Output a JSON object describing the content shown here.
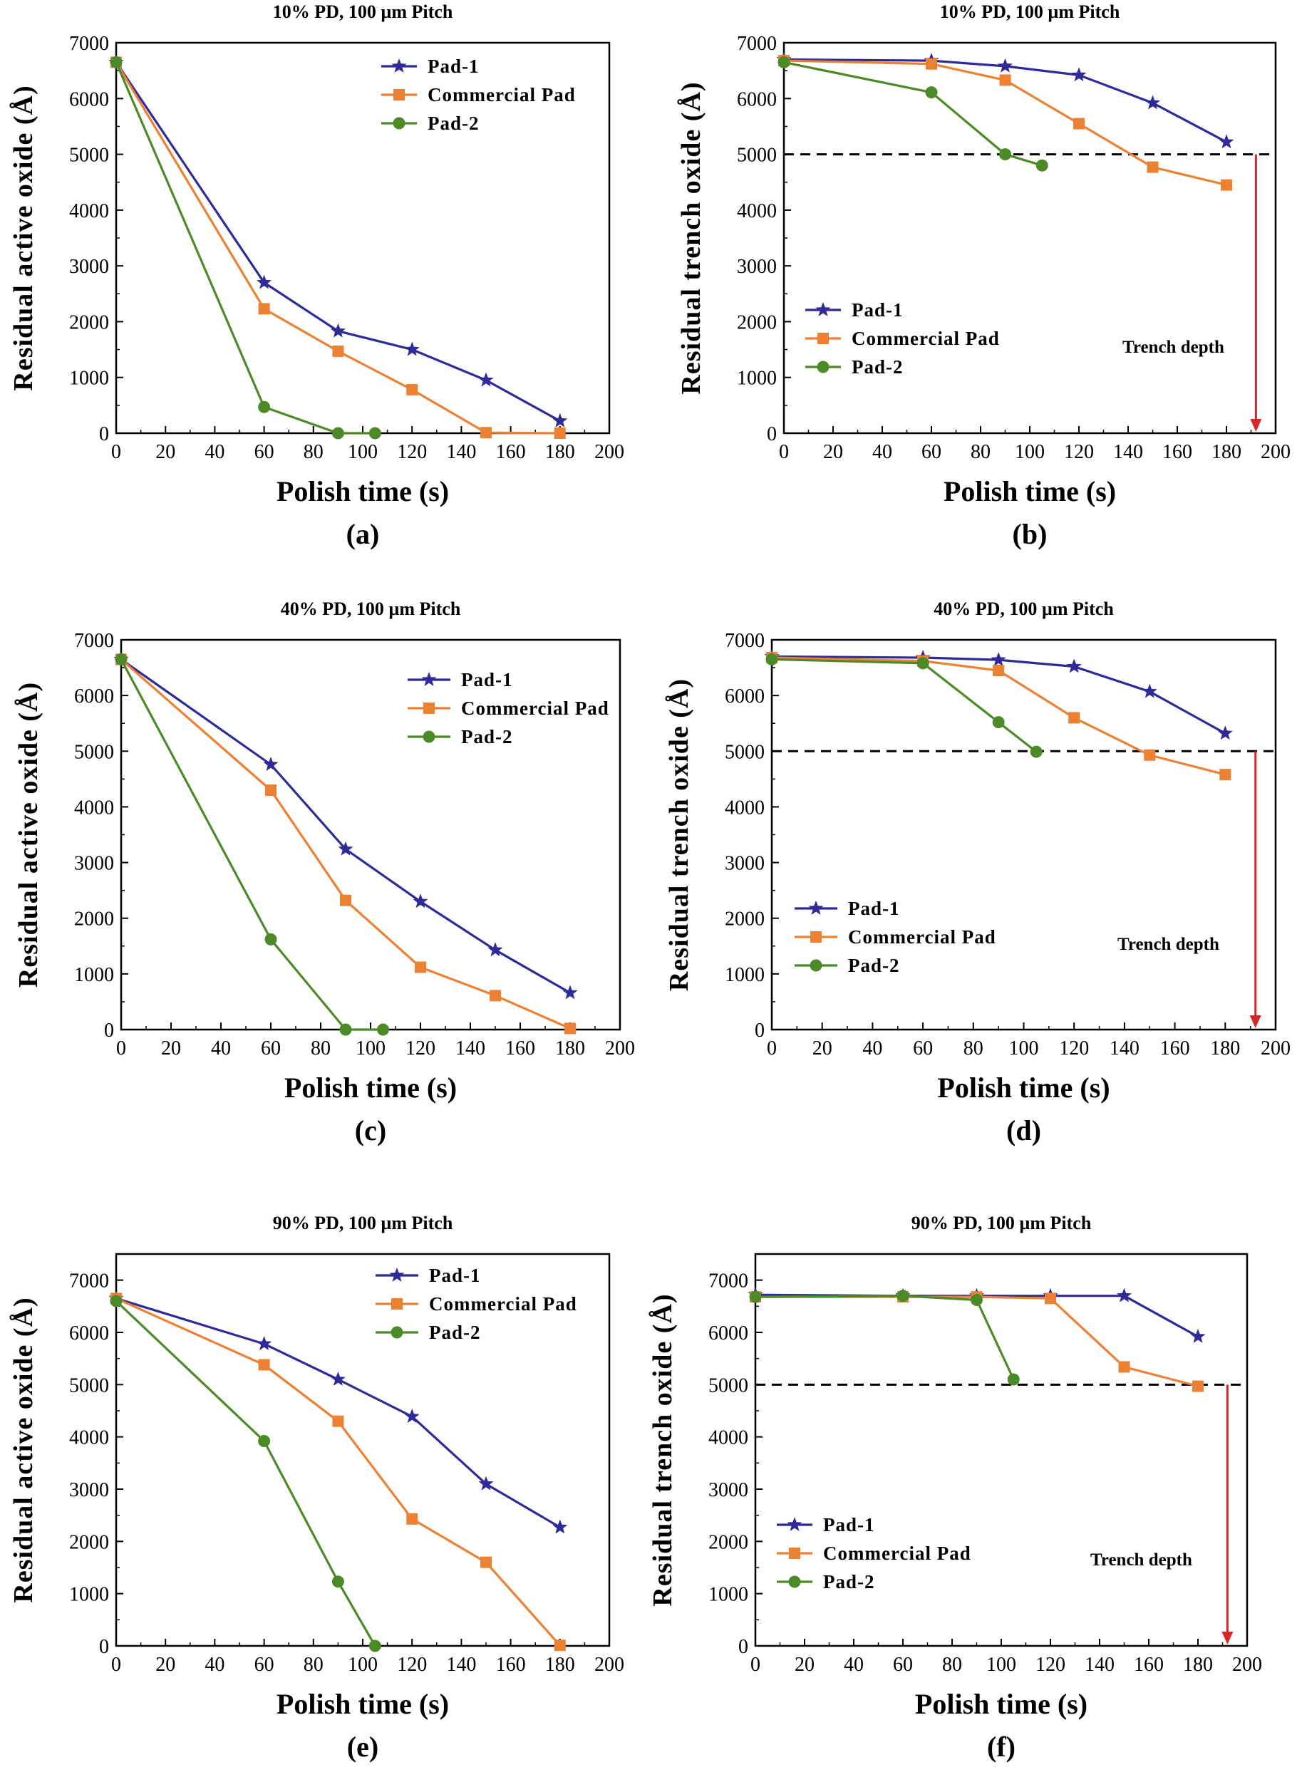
{
  "figure": {
    "series_styles": [
      {
        "name": "Pad-1",
        "color": "#2e2a97",
        "marker": "star"
      },
      {
        "name": "Commercial Pad",
        "color": "#ec8033",
        "marker": "square"
      },
      {
        "name": "Pad-2",
        "color": "#4b8a26",
        "marker": "circle"
      }
    ],
    "threshold_color": "#000000",
    "arrow_color": "#d62728"
  },
  "chart_data": [
    {
      "type": "line",
      "panel_label": "(a)",
      "title": "10% PD, 100 µm Pitch",
      "xlabel": "Polish time (s)",
      "ylabel": "Residual active oxide (Å)",
      "xlim": [
        0,
        200
      ],
      "ylim": [
        0,
        7000
      ],
      "xticks": [
        0,
        20,
        40,
        60,
        80,
        100,
        120,
        140,
        160,
        180,
        200
      ],
      "yticks": [
        0,
        1000,
        2000,
        3000,
        4000,
        5000,
        6000,
        7000
      ],
      "legend_position": "top-right",
      "series": [
        {
          "name": "Pad-1",
          "x": [
            0,
            60,
            90,
            120,
            150,
            180
          ],
          "y": [
            6650,
            2700,
            1830,
            1500,
            950,
            220
          ]
        },
        {
          "name": "Commercial Pad",
          "x": [
            0,
            60,
            90,
            120,
            150,
            180
          ],
          "y": [
            6650,
            2230,
            1470,
            780,
            10,
            0
          ]
        },
        {
          "name": "Pad-2",
          "x": [
            0,
            60,
            90,
            105
          ],
          "y": [
            6650,
            470,
            0,
            0
          ]
        }
      ]
    },
    {
      "type": "line",
      "panel_label": "(b)",
      "title": "10% PD, 100 µm Pitch",
      "xlabel": "Polish time (s)",
      "ylabel": "Residual trench oxide (Å)",
      "xlim": [
        0,
        200
      ],
      "ylim": [
        0,
        7000
      ],
      "xticks": [
        0,
        20,
        40,
        60,
        80,
        100,
        120,
        140,
        160,
        180,
        200
      ],
      "yticks": [
        0,
        1000,
        2000,
        3000,
        4000,
        5000,
        6000,
        7000
      ],
      "legend_position": "bottom-left",
      "threshold": 5000,
      "annotation": "Trench depth",
      "series": [
        {
          "name": "Pad-1",
          "x": [
            0,
            60,
            90,
            120,
            150,
            180
          ],
          "y": [
            6700,
            6680,
            6580,
            6420,
            5920,
            5220
          ]
        },
        {
          "name": "Commercial Pad",
          "x": [
            0,
            60,
            90,
            120,
            150,
            180
          ],
          "y": [
            6680,
            6620,
            6330,
            5550,
            4770,
            4450
          ]
        },
        {
          "name": "Pad-2",
          "x": [
            0,
            60,
            90,
            105
          ],
          "y": [
            6650,
            6110,
            5000,
            4800
          ]
        }
      ]
    },
    {
      "type": "line",
      "panel_label": "(c)",
      "title": "40% PD, 100 µm Pitch",
      "xlabel": "Polish time (s)",
      "ylabel": "Residual active oxide (Å)",
      "xlim": [
        0,
        200
      ],
      "ylim": [
        0,
        7000
      ],
      "xticks": [
        0,
        20,
        40,
        60,
        80,
        100,
        120,
        140,
        160,
        180,
        200
      ],
      "yticks": [
        0,
        1000,
        2000,
        3000,
        4000,
        5000,
        6000,
        7000
      ],
      "legend_position": "top-right",
      "series": [
        {
          "name": "Pad-1",
          "x": [
            0,
            60,
            90,
            120,
            150,
            180
          ],
          "y": [
            6650,
            4760,
            3240,
            2300,
            1430,
            660
          ]
        },
        {
          "name": "Commercial Pad",
          "x": [
            0,
            60,
            90,
            120,
            150,
            180
          ],
          "y": [
            6650,
            4300,
            2320,
            1120,
            610,
            20
          ]
        },
        {
          "name": "Pad-2",
          "x": [
            0,
            60,
            90,
            105
          ],
          "y": [
            6650,
            1620,
            0,
            0
          ]
        }
      ]
    },
    {
      "type": "line",
      "panel_label": "(d)",
      "title": "40% PD, 100 µm Pitch",
      "xlabel": "Polish time (s)",
      "ylabel": "Residual trench oxide (Å)",
      "xlim": [
        0,
        200
      ],
      "ylim": [
        0,
        7000
      ],
      "xticks": [
        0,
        20,
        40,
        60,
        80,
        100,
        120,
        140,
        160,
        180,
        200
      ],
      "yticks": [
        0,
        1000,
        2000,
        3000,
        4000,
        5000,
        6000,
        7000
      ],
      "legend_position": "bottom-left",
      "threshold": 5000,
      "annotation": "Trench depth",
      "series": [
        {
          "name": "Pad-1",
          "x": [
            0,
            60,
            90,
            120,
            150,
            180
          ],
          "y": [
            6700,
            6680,
            6640,
            6520,
            6070,
            5320
          ]
        },
        {
          "name": "Commercial Pad",
          "x": [
            0,
            60,
            90,
            120,
            150,
            180
          ],
          "y": [
            6680,
            6620,
            6450,
            5600,
            4930,
            4580
          ]
        },
        {
          "name": "Pad-2",
          "x": [
            0,
            60,
            90,
            105
          ],
          "y": [
            6650,
            6580,
            5520,
            4990
          ]
        }
      ]
    },
    {
      "type": "line",
      "panel_label": "(e)",
      "title": "90% PD, 100 µm Pitch",
      "xlabel": "Polish time (s)",
      "ylabel": "Residual active oxide (Å)",
      "xlim": [
        0,
        200
      ],
      "ylim": [
        0,
        7500
      ],
      "xticks": [
        0,
        20,
        40,
        60,
        80,
        100,
        120,
        140,
        160,
        180,
        200
      ],
      "yticks": [
        0,
        1000,
        2000,
        3000,
        4000,
        5000,
        6000,
        7000
      ],
      "legend_position": "top-right",
      "series": [
        {
          "name": "Pad-1",
          "x": [
            0,
            60,
            90,
            120,
            150,
            180
          ],
          "y": [
            6650,
            5780,
            5100,
            4390,
            3100,
            2270
          ]
        },
        {
          "name": "Commercial Pad",
          "x": [
            0,
            60,
            90,
            120,
            150,
            180
          ],
          "y": [
            6650,
            5380,
            4300,
            2430,
            1600,
            10
          ]
        },
        {
          "name": "Pad-2",
          "x": [
            0,
            60,
            90,
            105
          ],
          "y": [
            6600,
            3920,
            1230,
            0
          ]
        }
      ]
    },
    {
      "type": "line",
      "panel_label": "(f)",
      "title": "90% PD, 100 µm Pitch",
      "xlabel": "Polish time (s)",
      "ylabel": "Residual trench oxide (Å)",
      "xlim": [
        0,
        200
      ],
      "ylim": [
        0,
        7500
      ],
      "xticks": [
        0,
        20,
        40,
        60,
        80,
        100,
        120,
        140,
        160,
        180,
        200
      ],
      "yticks": [
        0,
        1000,
        2000,
        3000,
        4000,
        5000,
        6000,
        7000
      ],
      "legend_position": "bottom-left",
      "threshold": 5000,
      "annotation": "Trench depth",
      "series": [
        {
          "name": "Pad-1",
          "x": [
            0,
            60,
            90,
            120,
            150,
            180
          ],
          "y": [
            6720,
            6700,
            6700,
            6700,
            6700,
            5920
          ]
        },
        {
          "name": "Commercial Pad",
          "x": [
            0,
            60,
            90,
            120,
            150,
            180
          ],
          "y": [
            6680,
            6680,
            6680,
            6650,
            5340,
            4970
          ]
        },
        {
          "name": "Pad-2",
          "x": [
            0,
            60,
            90,
            105
          ],
          "y": [
            6680,
            6700,
            6620,
            5100
          ]
        }
      ]
    }
  ]
}
